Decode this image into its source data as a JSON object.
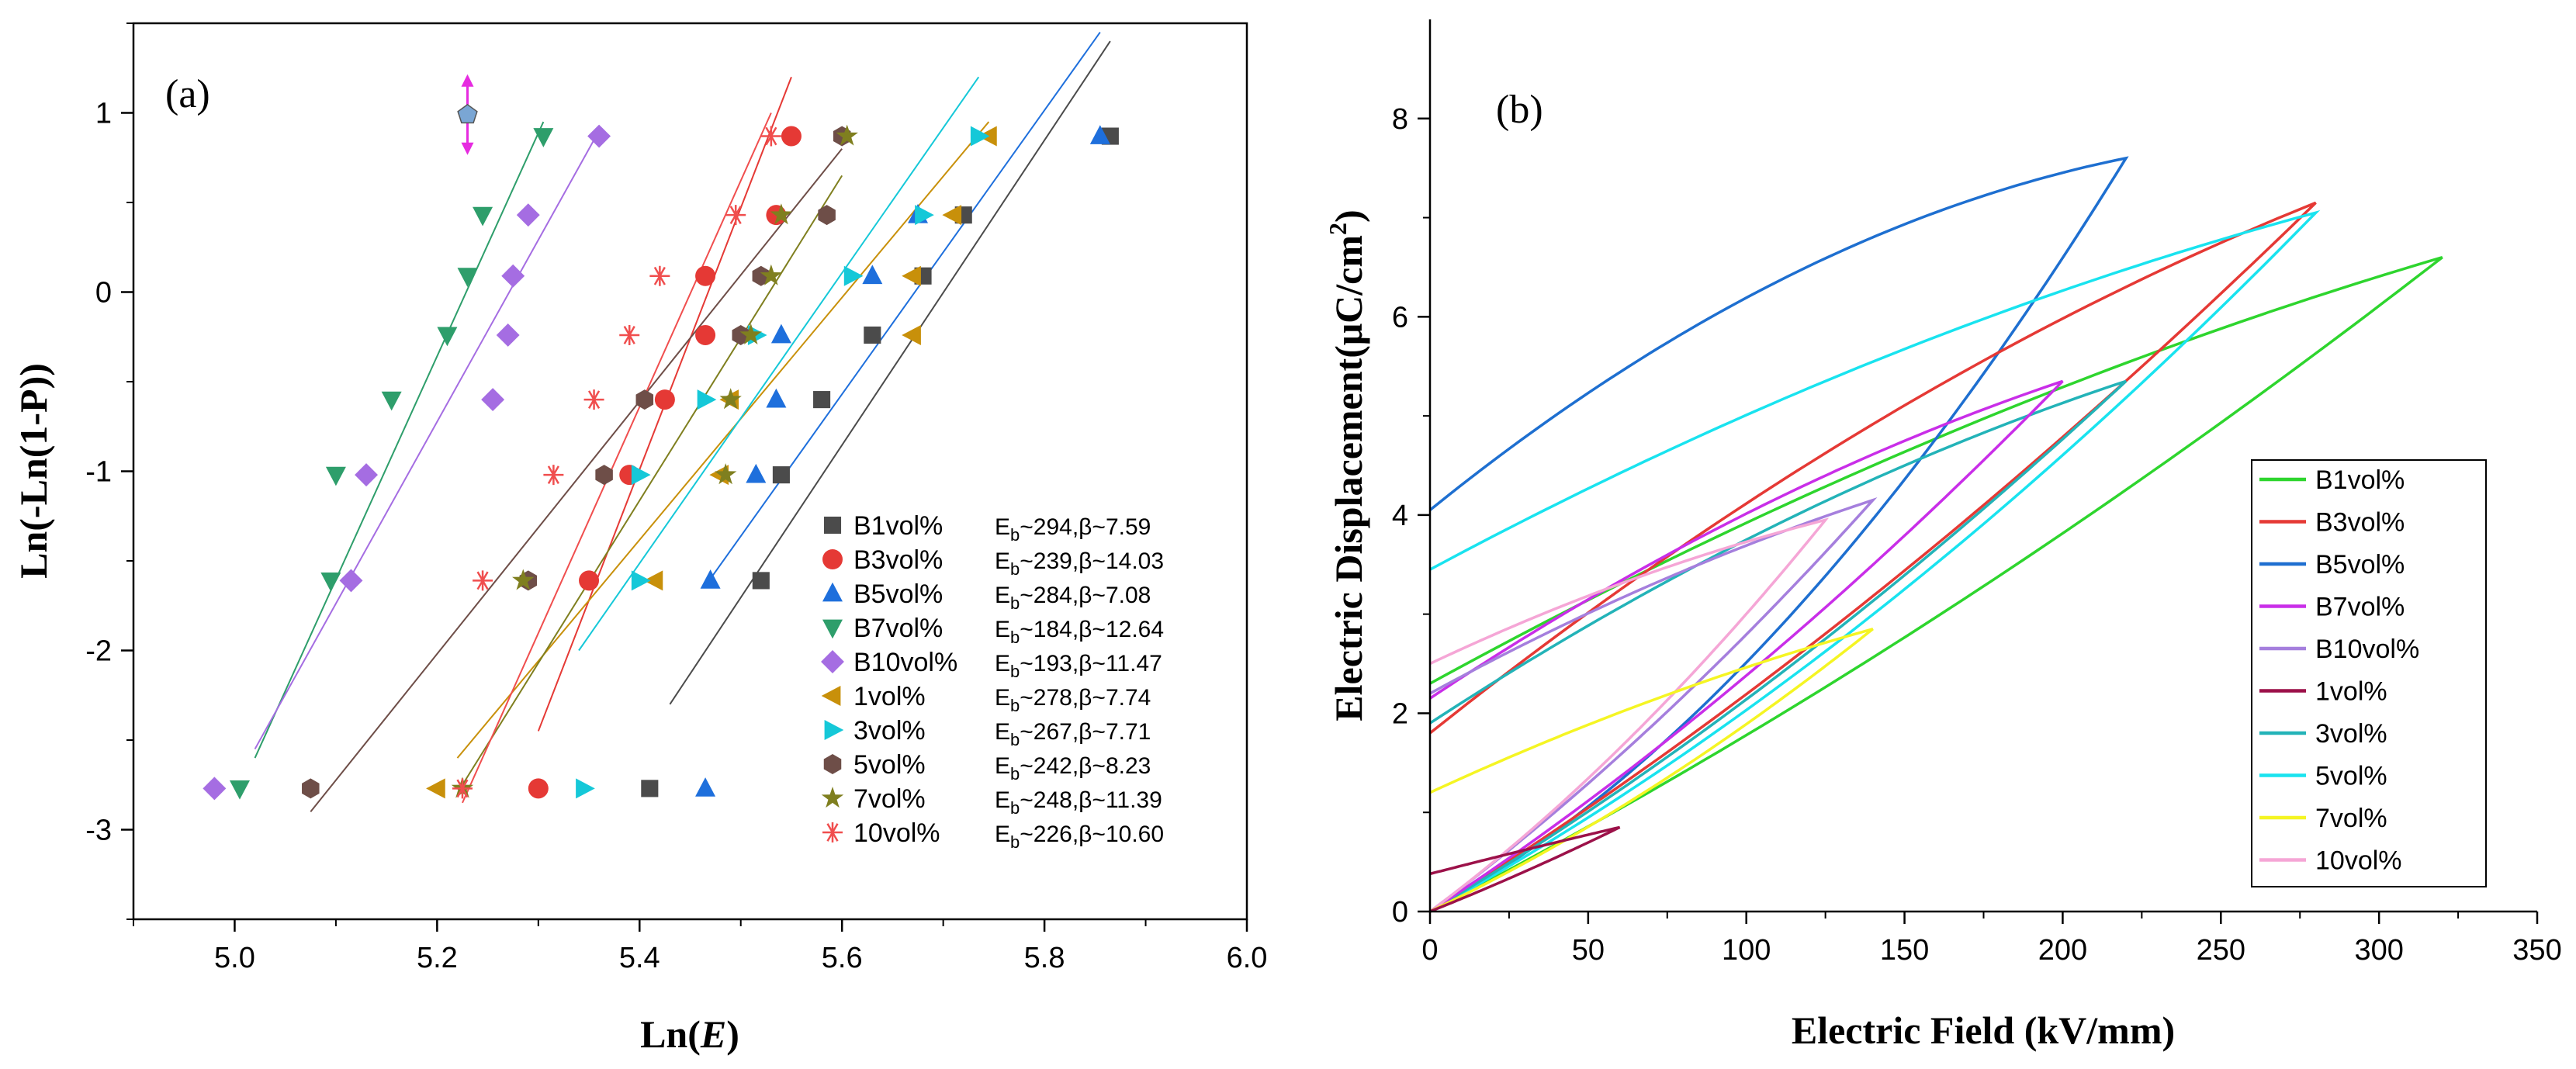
{
  "chart_data": [
    {
      "id": "a",
      "type": "scatter",
      "panel_label": "(a)",
      "xlabel_prefix": "Ln(",
      "xlabel_var": "E",
      "xlabel_suffix": ")",
      "ylabel": "Ln(-Ln(1-P))",
      "xlim": [
        4.9,
        6.0
      ],
      "ylim": [
        -3.5,
        1.5
      ],
      "xticks": [
        "5.0",
        "5.2",
        "5.4",
        "5.6",
        "5.8",
        "6.0"
      ],
      "yticks": [
        "-3",
        "-2",
        "-1",
        "0",
        "1"
      ],
      "y_levels": [
        -2.77,
        -1.61,
        -1.02,
        -0.6,
        -0.24,
        0.09,
        0.43,
        0.87
      ],
      "series": [
        {
          "name": "B1vol%",
          "eb": "294",
          "beta": "7.59",
          "color": "#4b4b4b",
          "marker": "square",
          "x": [
            5.41,
            5.52,
            5.54,
            5.58,
            5.63,
            5.68,
            5.72,
            5.865
          ],
          "fit": [
            [
              5.43,
              -2.3
            ],
            [
              5.865,
              1.4
            ]
          ]
        },
        {
          "name": "B3vol%",
          "eb": "239",
          "beta": "14.03",
          "color": "#e53935",
          "marker": "circle",
          "x": [
            5.3,
            5.35,
            5.39,
            5.425,
            5.465,
            5.465,
            5.535,
            5.55
          ],
          "fit": [
            [
              5.3,
              -2.45
            ],
            [
              5.55,
              1.2
            ]
          ]
        },
        {
          "name": "B5vol%",
          "eb": "284",
          "beta": "7.08",
          "color": "#1e6fdc",
          "marker": "triangle-up",
          "x": [
            5.465,
            5.47,
            5.515,
            5.535,
            5.54,
            5.63,
            5.675,
            5.855
          ],
          "fit": [
            [
              5.47,
              -1.6
            ],
            [
              5.855,
              1.45
            ]
          ]
        },
        {
          "name": "B7vol%",
          "eb": "184",
          "beta": "12.64",
          "color": "#2e9e6b",
          "marker": "triangle-down",
          "x": [
            5.005,
            5.095,
            5.1,
            5.155,
            5.21,
            5.23,
            5.245,
            5.305
          ],
          "fit": [
            [
              5.02,
              -2.6
            ],
            [
              5.305,
              0.95
            ]
          ]
        },
        {
          "name": "B10vol%",
          "eb": "193",
          "beta": "11.47",
          "color": "#a56de2",
          "marker": "diamond",
          "x": [
            4.98,
            5.115,
            5.13,
            5.255,
            5.27,
            5.275,
            5.29,
            5.36
          ],
          "fit": [
            [
              5.02,
              -2.55
            ],
            [
              5.36,
              0.9
            ]
          ]
        },
        {
          "name": "1vol%",
          "eb": "278",
          "beta": "7.74",
          "color": "#c8900a",
          "marker": "triangle-left",
          "x": [
            5.2,
            5.415,
            5.48,
            5.49,
            5.67,
            5.67,
            5.71,
            5.745
          ],
          "fit": [
            [
              5.22,
              -2.6
            ],
            [
              5.745,
              0.95
            ]
          ]
        },
        {
          "name": "3vol%",
          "eb": "267",
          "beta": "7.71",
          "color": "#15c8d8",
          "marker": "triangle-right",
          "x": [
            5.345,
            5.4,
            5.4,
            5.465,
            5.515,
            5.61,
            5.68,
            5.735
          ],
          "fit": [
            [
              5.34,
              -2.0
            ],
            [
              5.735,
              1.2
            ]
          ]
        },
        {
          "name": "5vol%",
          "eb": "242",
          "beta": "8.23",
          "color": "#6e4e48",
          "marker": "hexagon",
          "x": [
            5.075,
            5.29,
            5.365,
            5.405,
            5.5,
            5.52,
            5.585,
            5.6
          ],
          "fit": [
            [
              5.075,
              -2.9
            ],
            [
              5.6,
              0.8
            ]
          ]
        },
        {
          "name": "7vol%",
          "eb": "248",
          "beta": "11.39",
          "color": "#7f7f1f",
          "marker": "star",
          "x": [
            5.225,
            5.285,
            5.485,
            5.49,
            5.51,
            5.53,
            5.54,
            5.605
          ],
          "fit": [
            [
              5.225,
              -2.75
            ],
            [
              5.6,
              0.65
            ]
          ]
        },
        {
          "name": "10vol%",
          "eb": "226",
          "beta": "10.60",
          "color": "#f04e4e",
          "marker": "asterisk",
          "x": [
            5.225,
            5.245,
            5.315,
            5.355,
            5.39,
            5.42,
            5.495,
            5.53
          ],
          "fit": [
            [
              5.225,
              -2.85
            ],
            [
              5.53,
              1.0
            ]
          ]
        }
      ],
      "legend_eb_prefix": "E",
      "legend_eb_sub": "b",
      "legend_eb_sep": "~",
      "legend_beta_sep": ",β~",
      "outlier": {
        "x": 5.23,
        "y": 0.99,
        "color": "#7aa6d4",
        "arrow_color": "#e62be0"
      }
    },
    {
      "id": "b",
      "type": "line",
      "panel_label": "(b)",
      "xlabel": "Electric Field (kV/mm)",
      "ylabel_prefix": "Electric Displacement(μC/cm",
      "ylabel_sup": "2",
      "ylabel_suffix": ")",
      "xlim": [
        0,
        350
      ],
      "ylim": [
        0,
        9
      ],
      "xticks": [
        "0",
        "50",
        "100",
        "150",
        "200",
        "250",
        "300",
        "350"
      ],
      "yticks": [
        "0",
        "2",
        "4",
        "6",
        "8"
      ],
      "series": [
        {
          "name": "B1vol%",
          "color": "#2ed52e",
          "emax": 320,
          "dmax": 6.6,
          "dr": 2.3,
          "up": 0.2,
          "down": 0.3
        },
        {
          "name": "B3vol%",
          "color": "#e53935",
          "emax": 280,
          "dmax": 7.15,
          "dr": 1.8,
          "up": 0.22,
          "down": 0.33
        },
        {
          "name": "B5vol%",
          "color": "#1e6fd0",
          "emax": 220,
          "dmax": 7.6,
          "dr": 4.05,
          "up": 0.5,
          "down": 0.6
        },
        {
          "name": "B7vol%",
          "color": "#c92ee8",
          "emax": 200,
          "dmax": 5.35,
          "dr": 2.15,
          "up": 0.22,
          "down": 0.33
        },
        {
          "name": "B10vol%",
          "color": "#a57fdd",
          "emax": 140,
          "dmax": 4.15,
          "dr": 2.2,
          "up": 0.2,
          "down": 0.25
        },
        {
          "name": "1vol%",
          "color": "#9c1149",
          "emax": 60,
          "dmax": 0.85,
          "dr": 0.38,
          "up": 0.1,
          "down": 0.05
        },
        {
          "name": "3vol%",
          "color": "#23b3b8",
          "emax": 220,
          "dmax": 5.35,
          "dr": 1.9,
          "up": 0.22,
          "down": 0.33
        },
        {
          "name": "5vol%",
          "color": "#19e3ef",
          "emax": 280,
          "dmax": 7.05,
          "dr": 3.45,
          "up": 0.3,
          "down": 0.33
        },
        {
          "name": "7vol%",
          "color": "#f5f523",
          "emax": 140,
          "dmax": 2.85,
          "dr": 1.2,
          "up": 0.25,
          "down": 0.25
        },
        {
          "name": "10vol%",
          "color": "#f5a6d6",
          "emax": 125,
          "dmax": 3.95,
          "dr": 2.5,
          "up": 0.25,
          "down": 0.3
        }
      ]
    }
  ]
}
